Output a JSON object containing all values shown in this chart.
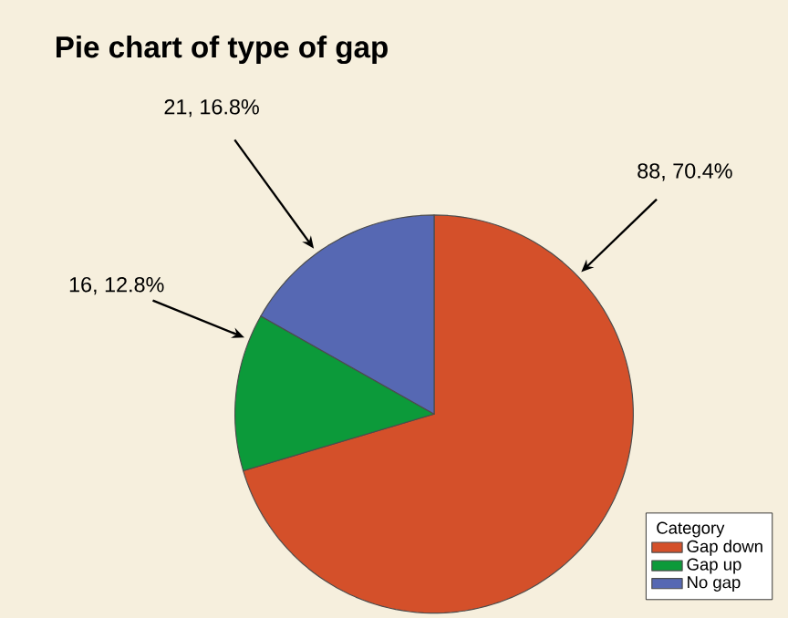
{
  "chart_data": {
    "type": "pie",
    "title": "Pie chart of type of gap",
    "categories": [
      "Gap down",
      "Gap up",
      "No gap"
    ],
    "values": [
      88,
      16,
      21
    ],
    "colors": [
      "#d4502a",
      "#0c9a3a",
      "#5668b3"
    ],
    "value_labels": [
      "88, 70.4%",
      "16, 12.8%",
      "21, 16.8%"
    ],
    "legend": "bottom right",
    "legend_title": "Category"
  }
}
